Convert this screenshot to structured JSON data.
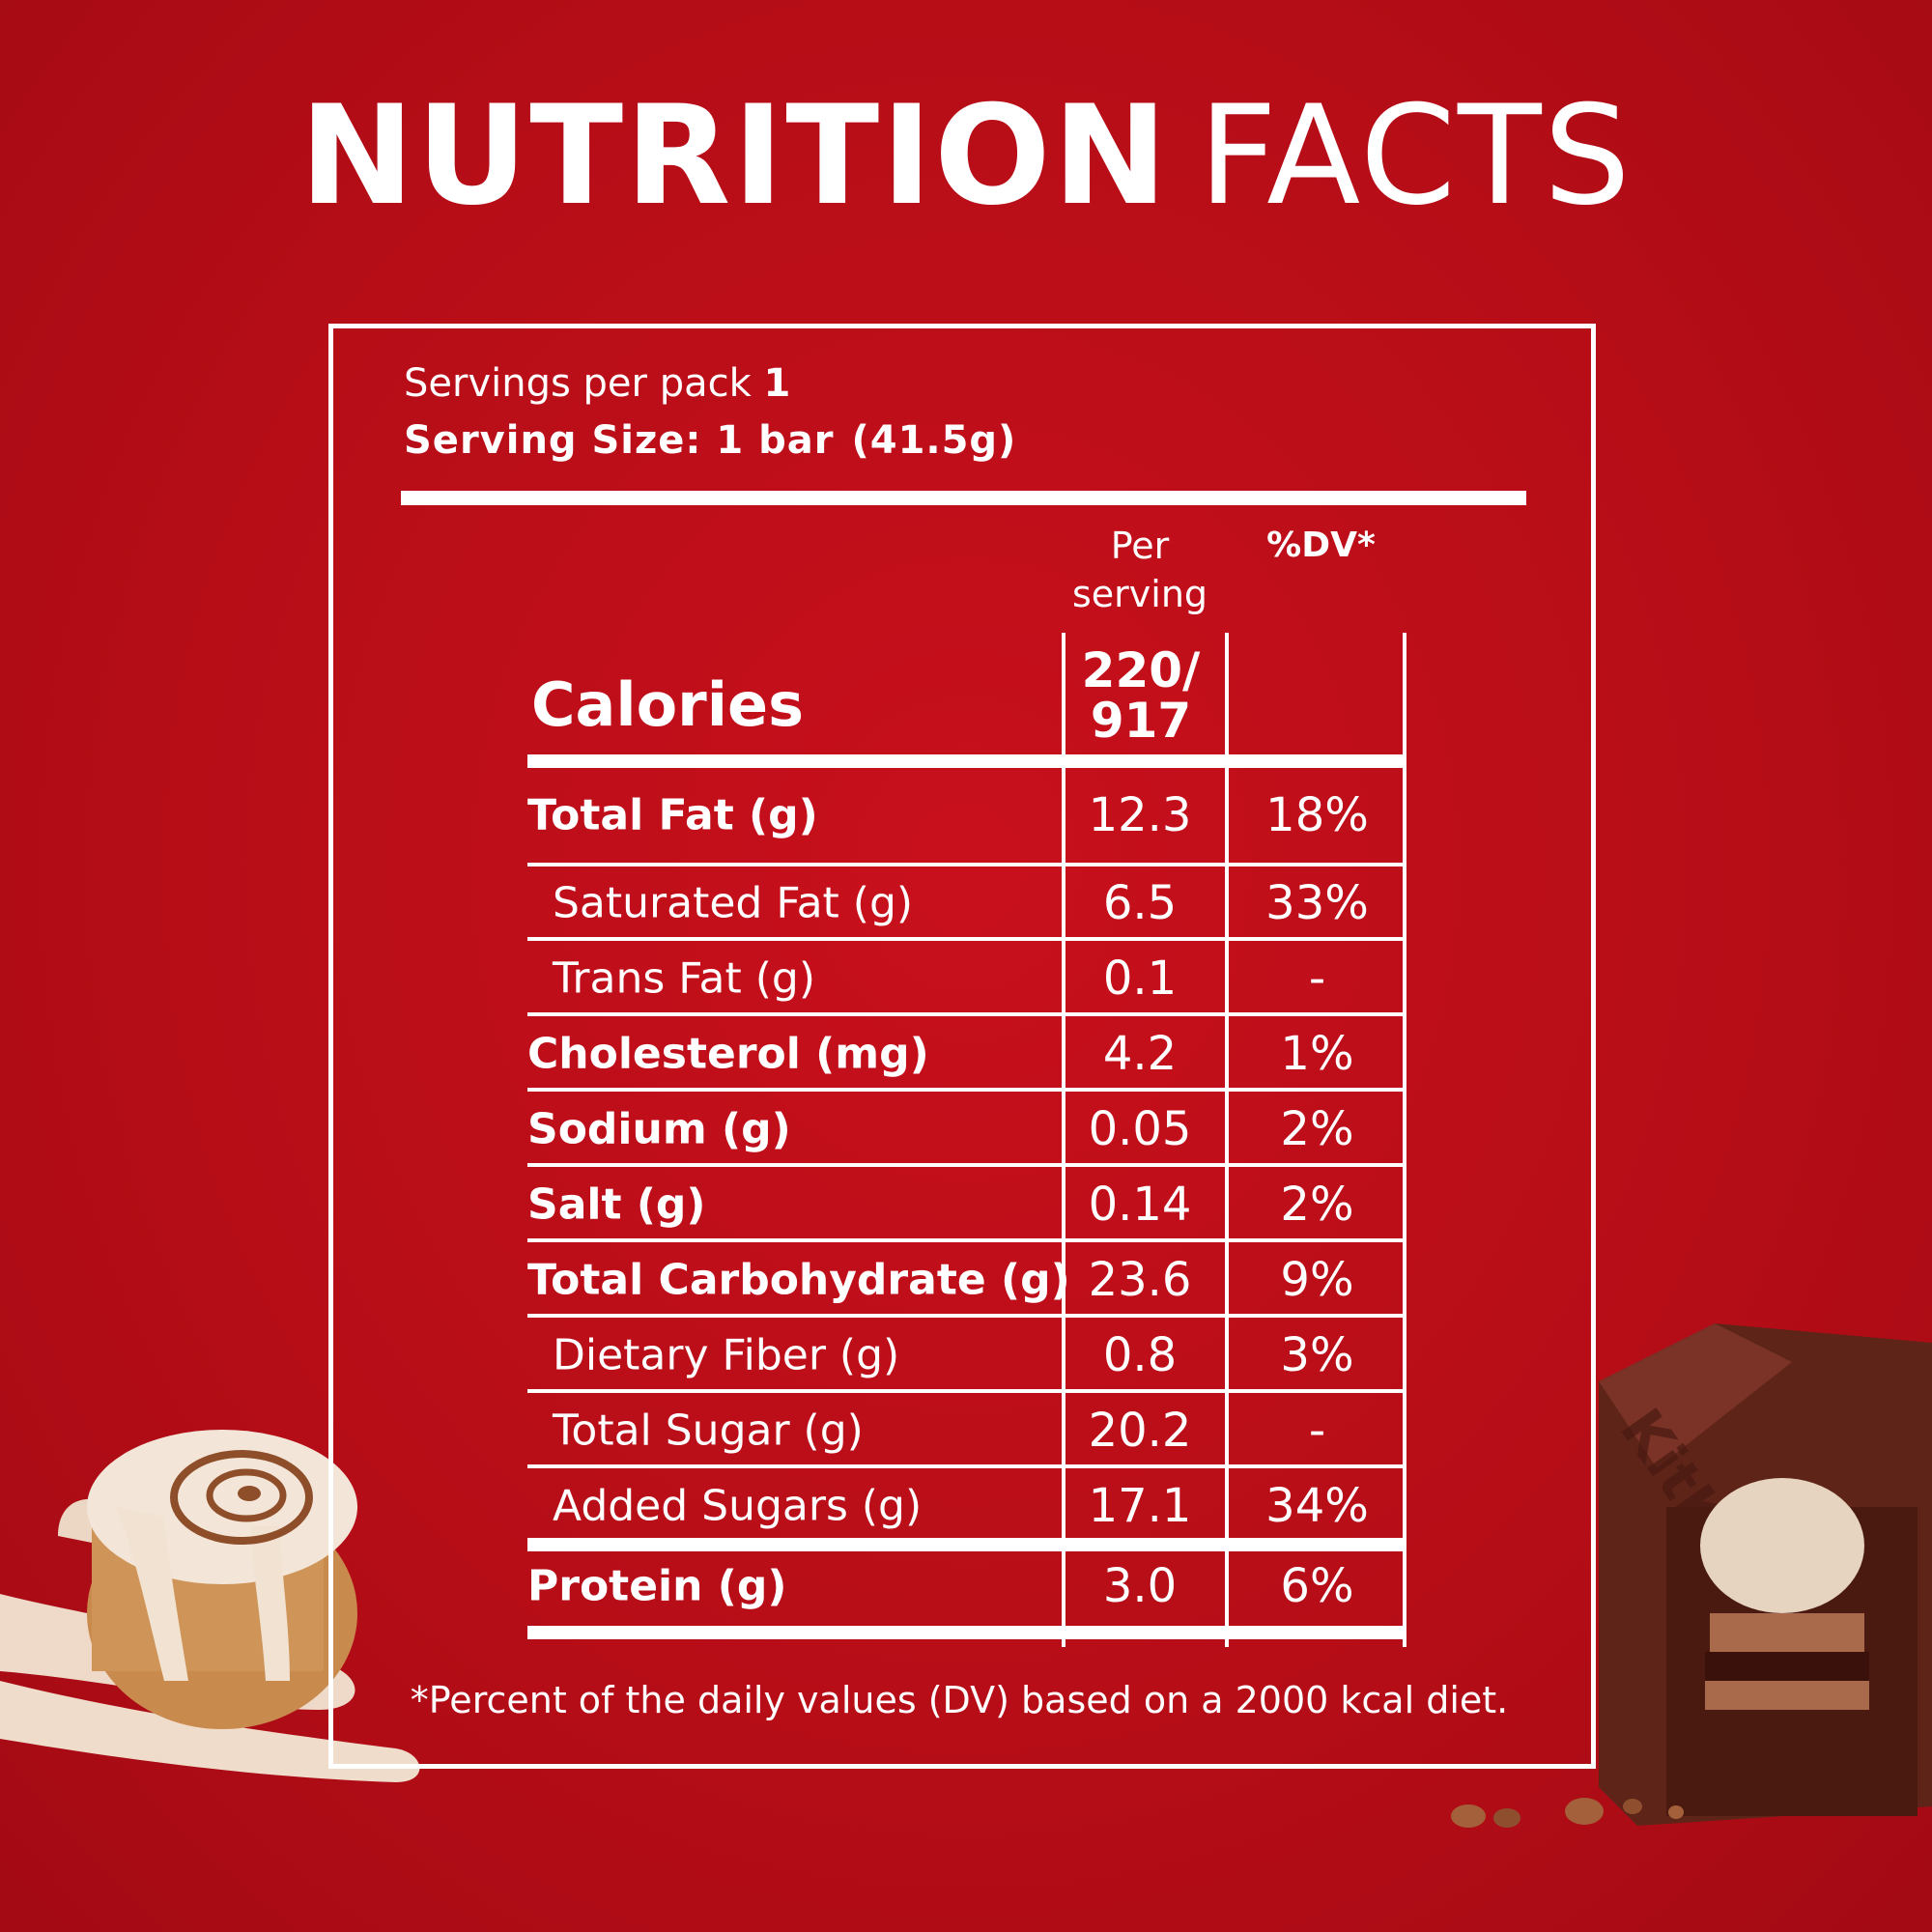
{
  "title": {
    "bold": "NUTRITION",
    "light": "FACTS"
  },
  "servings": {
    "per_pack_label": "Servings per pack",
    "per_pack_value": "1",
    "size_label": "Serving Size: 1 bar",
    "size_weight": "(41.5g)"
  },
  "headers": {
    "per_serving_line1": "Per",
    "per_serving_line2": "serving",
    "dv": "%DV*"
  },
  "calories": {
    "label": "Calories",
    "line1": "220/",
    "line2": "917"
  },
  "rows": [
    {
      "label": "Total Fat (g)",
      "value": "12.3",
      "dv": "18%"
    },
    {
      "label": "Saturated Fat (g)",
      "value": "6.5",
      "dv": "33%"
    },
    {
      "label": "Trans Fat (g)",
      "value": "0.1",
      "dv": "-"
    },
    {
      "label": "Cholesterol (mg)",
      "value": "4.2",
      "dv": "1%"
    },
    {
      "label": "Sodium (g)",
      "value": "0.05",
      "dv": "2%"
    },
    {
      "label": "Salt (g)",
      "value": "0.14",
      "dv": "2%"
    },
    {
      "label": "Total Carbohydrate (g)",
      "value": "23.6",
      "dv": "9%"
    },
    {
      "label": "Dietary Fiber (g)",
      "value": "0.8",
      "dv": "3%"
    },
    {
      "label": "Total Sugar (g)",
      "value": "20.2",
      "dv": "-"
    },
    {
      "label": "Added Sugars (g)",
      "value": "17.1",
      "dv": "34%"
    },
    {
      "label": "Protein (g)",
      "value": "3.0",
      "dv": "6%"
    }
  ],
  "footnote": "*Percent of the daily values (DV) based on a 2000 kcal diet.",
  "colors": {
    "background": "#c00d18",
    "text": "#ffffff"
  }
}
